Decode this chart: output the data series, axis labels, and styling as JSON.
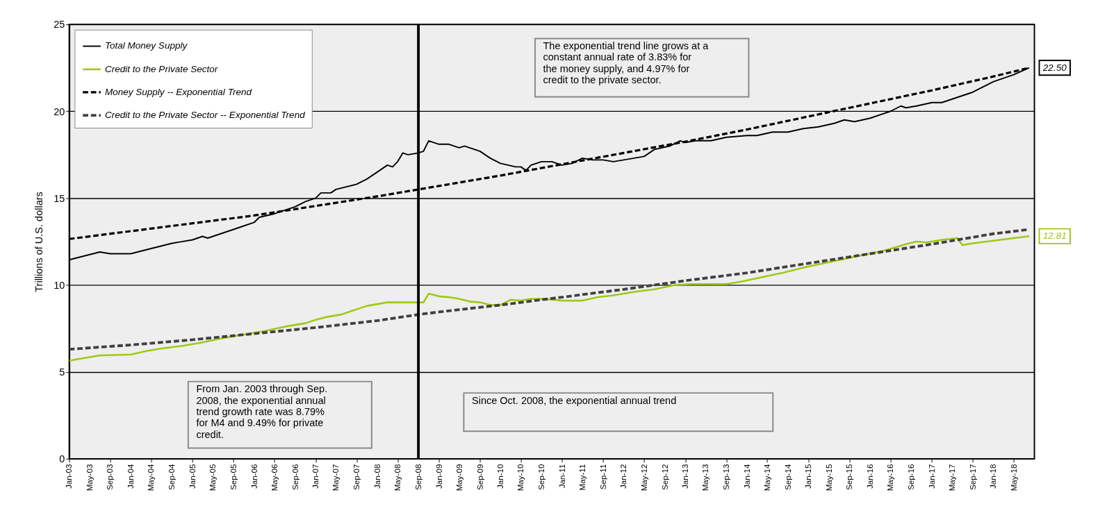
{
  "chart_data": {
    "type": "line",
    "ylabel": "Trillions of U.S. dollars",
    "xlim": [
      "2003-01",
      "2018-09"
    ],
    "ylim": [
      0,
      25
    ],
    "yticks": [
      0,
      5,
      10,
      15,
      20,
      25
    ],
    "xticks": [
      {
        "value": "2003-01",
        "label": "Jan-03"
      },
      {
        "value": "2003-05",
        "label": "May-03"
      },
      {
        "value": "2003-09",
        "label": "Sep-03"
      },
      {
        "value": "2004-01",
        "label": "Jan-04"
      },
      {
        "value": "2004-05",
        "label": "May-04"
      },
      {
        "value": "2004-09",
        "label": "Sep-04"
      },
      {
        "value": "2005-01",
        "label": "Jan-05"
      },
      {
        "value": "2005-05",
        "label": "May-05"
      },
      {
        "value": "2005-09",
        "label": "Sep-05"
      },
      {
        "value": "2006-01",
        "label": "Jan-06"
      },
      {
        "value": "2006-05",
        "label": "May-06"
      },
      {
        "value": "2006-09",
        "label": "Sep-06"
      },
      {
        "value": "2007-01",
        "label": "Jan-07"
      },
      {
        "value": "2007-05",
        "label": "May-07"
      },
      {
        "value": "2007-09",
        "label": "Sep-07"
      },
      {
        "value": "2008-01",
        "label": "Jan-08"
      },
      {
        "value": "2008-05",
        "label": "May-08"
      },
      {
        "value": "2008-09",
        "label": "Sep-08"
      },
      {
        "value": "2009-01",
        "label": "Jan-09"
      },
      {
        "value": "2009-05",
        "label": "May-09"
      },
      {
        "value": "2009-09",
        "label": "Sep-09"
      },
      {
        "value": "2010-01",
        "label": "Jan-10"
      },
      {
        "value": "2010-05",
        "label": "May-10"
      },
      {
        "value": "2010-09",
        "label": "Sep-10"
      },
      {
        "value": "2011-01",
        "label": "Jan-11"
      },
      {
        "value": "2011-05",
        "label": "May-11"
      },
      {
        "value": "2011-09",
        "label": "Sep-11"
      },
      {
        "value": "2012-01",
        "label": "Jan-12"
      },
      {
        "value": "2012-05",
        "label": "May-12"
      },
      {
        "value": "2012-09",
        "label": "Sep-12"
      },
      {
        "value": "2013-01",
        "label": "Jan-13"
      },
      {
        "value": "2013-05",
        "label": "May-13"
      },
      {
        "value": "2013-09",
        "label": "Sep-13"
      },
      {
        "value": "2014-01",
        "label": "Jan-14"
      },
      {
        "value": "2014-05",
        "label": "May-14"
      },
      {
        "value": "2014-09",
        "label": "Sep-14"
      },
      {
        "value": "2015-01",
        "label": "Jan-15"
      },
      {
        "value": "2015-05",
        "label": "May-15"
      },
      {
        "value": "2015-09",
        "label": "Sep-15"
      },
      {
        "value": "2016-01",
        "label": "Jan-16"
      },
      {
        "value": "2016-05",
        "label": "May-16"
      },
      {
        "value": "2016-09",
        "label": "Sep-16"
      },
      {
        "value": "2017-01",
        "label": "Jan-17"
      },
      {
        "value": "2017-05",
        "label": "May-17"
      },
      {
        "value": "2017-09",
        "label": "Sep-17"
      },
      {
        "value": "2018-01",
        "label": "Jan-18"
      },
      {
        "value": "2018-05",
        "label": "May-18"
      }
    ],
    "grid": "y",
    "legend": "top left",
    "marker": "none",
    "series": [
      {
        "name": "Total Money Supply",
        "color": "#000000",
        "line_style": "solid",
        "x": [
          "2003-01",
          "2003-07",
          "2003-09",
          "2004-01",
          "2004-05",
          "2004-09",
          "2005-01",
          "2005-03",
          "2005-04",
          "2005-09",
          "2005-10",
          "2006-01",
          "2006-02",
          "2006-05",
          "2006-09",
          "2006-11",
          "2007-01",
          "2007-02",
          "2007-04",
          "2007-05",
          "2007-09",
          "2007-11",
          "2008-01",
          "2008-03",
          "2008-04",
          "2008-05",
          "2008-06",
          "2008-07",
          "2008-09",
          "2008-10",
          "2008-11",
          "2009-01",
          "2009-03",
          "2009-05",
          "2009-06",
          "2009-09",
          "2009-11",
          "2010-01",
          "2010-04",
          "2010-05",
          "2010-06",
          "2010-07",
          "2010-09",
          "2010-11",
          "2011-01",
          "2011-03",
          "2011-05",
          "2011-07",
          "2011-09",
          "2011-11",
          "2012-01",
          "2012-03",
          "2012-05",
          "2012-07",
          "2012-10",
          "2012-12",
          "2013-01",
          "2013-03",
          "2013-06",
          "2013-09",
          "2014-01",
          "2014-03",
          "2014-06",
          "2014-09",
          "2014-12",
          "2015-03",
          "2015-06",
          "2015-08",
          "2015-10",
          "2016-01",
          "2016-05",
          "2016-07",
          "2016-08",
          "2016-10",
          "2017-01",
          "2017-03",
          "2017-06",
          "2017-09",
          "2017-11",
          "2018-01",
          "2018-05",
          "2018-08"
        ],
        "values": [
          11.45,
          11.9,
          11.8,
          11.8,
          12.1,
          12.4,
          12.6,
          12.8,
          12.7,
          13.2,
          13.3,
          13.6,
          13.9,
          14.1,
          14.5,
          14.8,
          15.0,
          15.3,
          15.3,
          15.5,
          15.8,
          16.1,
          16.5,
          16.9,
          16.8,
          17.1,
          17.6,
          17.5,
          17.6,
          17.7,
          18.3,
          18.1,
          18.1,
          17.9,
          18.0,
          17.7,
          17.3,
          17.0,
          16.8,
          16.8,
          16.6,
          16.9,
          17.1,
          17.1,
          16.9,
          17.0,
          17.3,
          17.2,
          17.2,
          17.1,
          17.2,
          17.3,
          17.4,
          17.8,
          18.0,
          18.3,
          18.2,
          18.3,
          18.3,
          18.5,
          18.6,
          18.6,
          18.8,
          18.8,
          19.0,
          19.1,
          19.3,
          19.5,
          19.4,
          19.6,
          20.0,
          20.3,
          20.2,
          20.3,
          20.5,
          20.5,
          20.8,
          21.1,
          21.4,
          21.7,
          22.1,
          22.5
        ]
      },
      {
        "name": "Credit to the Private Sector",
        "color": "#a0c814",
        "line_style": "solid",
        "x": [
          "2003-01",
          "2003-04",
          "2003-07",
          "2004-01",
          "2004-04",
          "2004-07",
          "2004-11",
          "2005-03",
          "2005-07",
          "2005-11",
          "2006-03",
          "2006-07",
          "2006-11",
          "2007-01",
          "2007-03",
          "2007-06",
          "2007-09",
          "2007-11",
          "2008-01",
          "2008-03",
          "2008-06",
          "2008-10",
          "2008-11",
          "2009-01",
          "2009-03",
          "2009-05",
          "2009-07",
          "2009-09",
          "2009-11",
          "2010-01",
          "2010-03",
          "2010-05",
          "2010-07",
          "2010-10",
          "2011-01",
          "2011-05",
          "2011-08",
          "2011-11",
          "2012-03",
          "2012-07",
          "2012-11",
          "2013-02",
          "2013-06",
          "2013-09",
          "2013-12",
          "2014-04",
          "2014-08",
          "2014-12",
          "2015-04",
          "2015-08",
          "2015-12",
          "2016-04",
          "2016-08",
          "2016-10",
          "2016-12",
          "2017-03",
          "2017-06",
          "2017-07",
          "2017-09",
          "2018-01",
          "2018-05",
          "2018-08"
        ],
        "values": [
          5.65,
          5.8,
          5.95,
          6.0,
          6.2,
          6.35,
          6.5,
          6.7,
          6.95,
          7.15,
          7.35,
          7.6,
          7.8,
          8.0,
          8.15,
          8.3,
          8.6,
          8.8,
          8.9,
          9.0,
          9.0,
          9.0,
          9.5,
          9.35,
          9.3,
          9.2,
          9.05,
          9.0,
          8.85,
          8.85,
          9.15,
          9.1,
          9.2,
          9.2,
          9.1,
          9.1,
          9.3,
          9.4,
          9.6,
          9.75,
          10.0,
          10.05,
          10.05,
          10.05,
          10.2,
          10.45,
          10.7,
          11.0,
          11.25,
          11.5,
          11.75,
          12.0,
          12.35,
          12.5,
          12.45,
          12.6,
          12.7,
          12.3,
          12.4,
          12.55,
          12.7,
          12.81
        ]
      },
      {
        "name": "Money Supply -- Exponential Trend",
        "color": "#000000",
        "line_style": "dashed",
        "x": [
          "2003-01",
          "2004-01",
          "2005-01",
          "2006-01",
          "2007-01",
          "2008-01",
          "2008-09",
          "2009-01",
          "2010-01",
          "2011-01",
          "2012-01",
          "2013-01",
          "2014-01",
          "2015-01",
          "2016-01",
          "2017-01",
          "2018-01",
          "2018-08"
        ],
        "values": [
          12.65,
          13.1,
          13.55,
          14.0,
          14.55,
          15.1,
          15.5,
          15.7,
          16.3,
          16.95,
          17.6,
          18.25,
          18.95,
          19.7,
          20.45,
          21.2,
          22.0,
          22.5
        ]
      },
      {
        "name": "Credit to the Private Sector -- Exponential Trend",
        "color": "#404040",
        "line_style": "dashed",
        "x": [
          "2003-01",
          "2004-01",
          "2005-01",
          "2006-01",
          "2007-01",
          "2008-01",
          "2008-09",
          "2009-01",
          "2010-01",
          "2011-01",
          "2012-01",
          "2013-01",
          "2014-01",
          "2015-01",
          "2016-01",
          "2017-01",
          "2018-01",
          "2018-08"
        ],
        "values": [
          6.3,
          6.55,
          6.85,
          7.2,
          7.55,
          7.95,
          8.3,
          8.45,
          8.85,
          9.3,
          9.75,
          10.25,
          10.7,
          11.25,
          11.8,
          12.35,
          12.95,
          13.2
        ]
      }
    ],
    "ref_lines": [
      {
        "axis": "x",
        "value": "2008-09",
        "color": "#000000"
      }
    ],
    "annotations": [
      "The exponential trend line grows at a\nconstant annual rate of 3.83% for\nthe money supply, and 4.97% for\ncredit to the private sector.",
      "From Jan. 2003 through Sep.\n2008, the exponential annual\ntrend growth rate was 8.79%\nfor M4 and 9.49% for private\ncredit.",
      "Since Oct. 2008, the exponential annual trend",
      {
        "text": "22.50",
        "x": "2018-08",
        "y": 22.5
      },
      {
        "text": "12.81",
        "x": "2018-08",
        "y": 12.81
      }
    ]
  }
}
